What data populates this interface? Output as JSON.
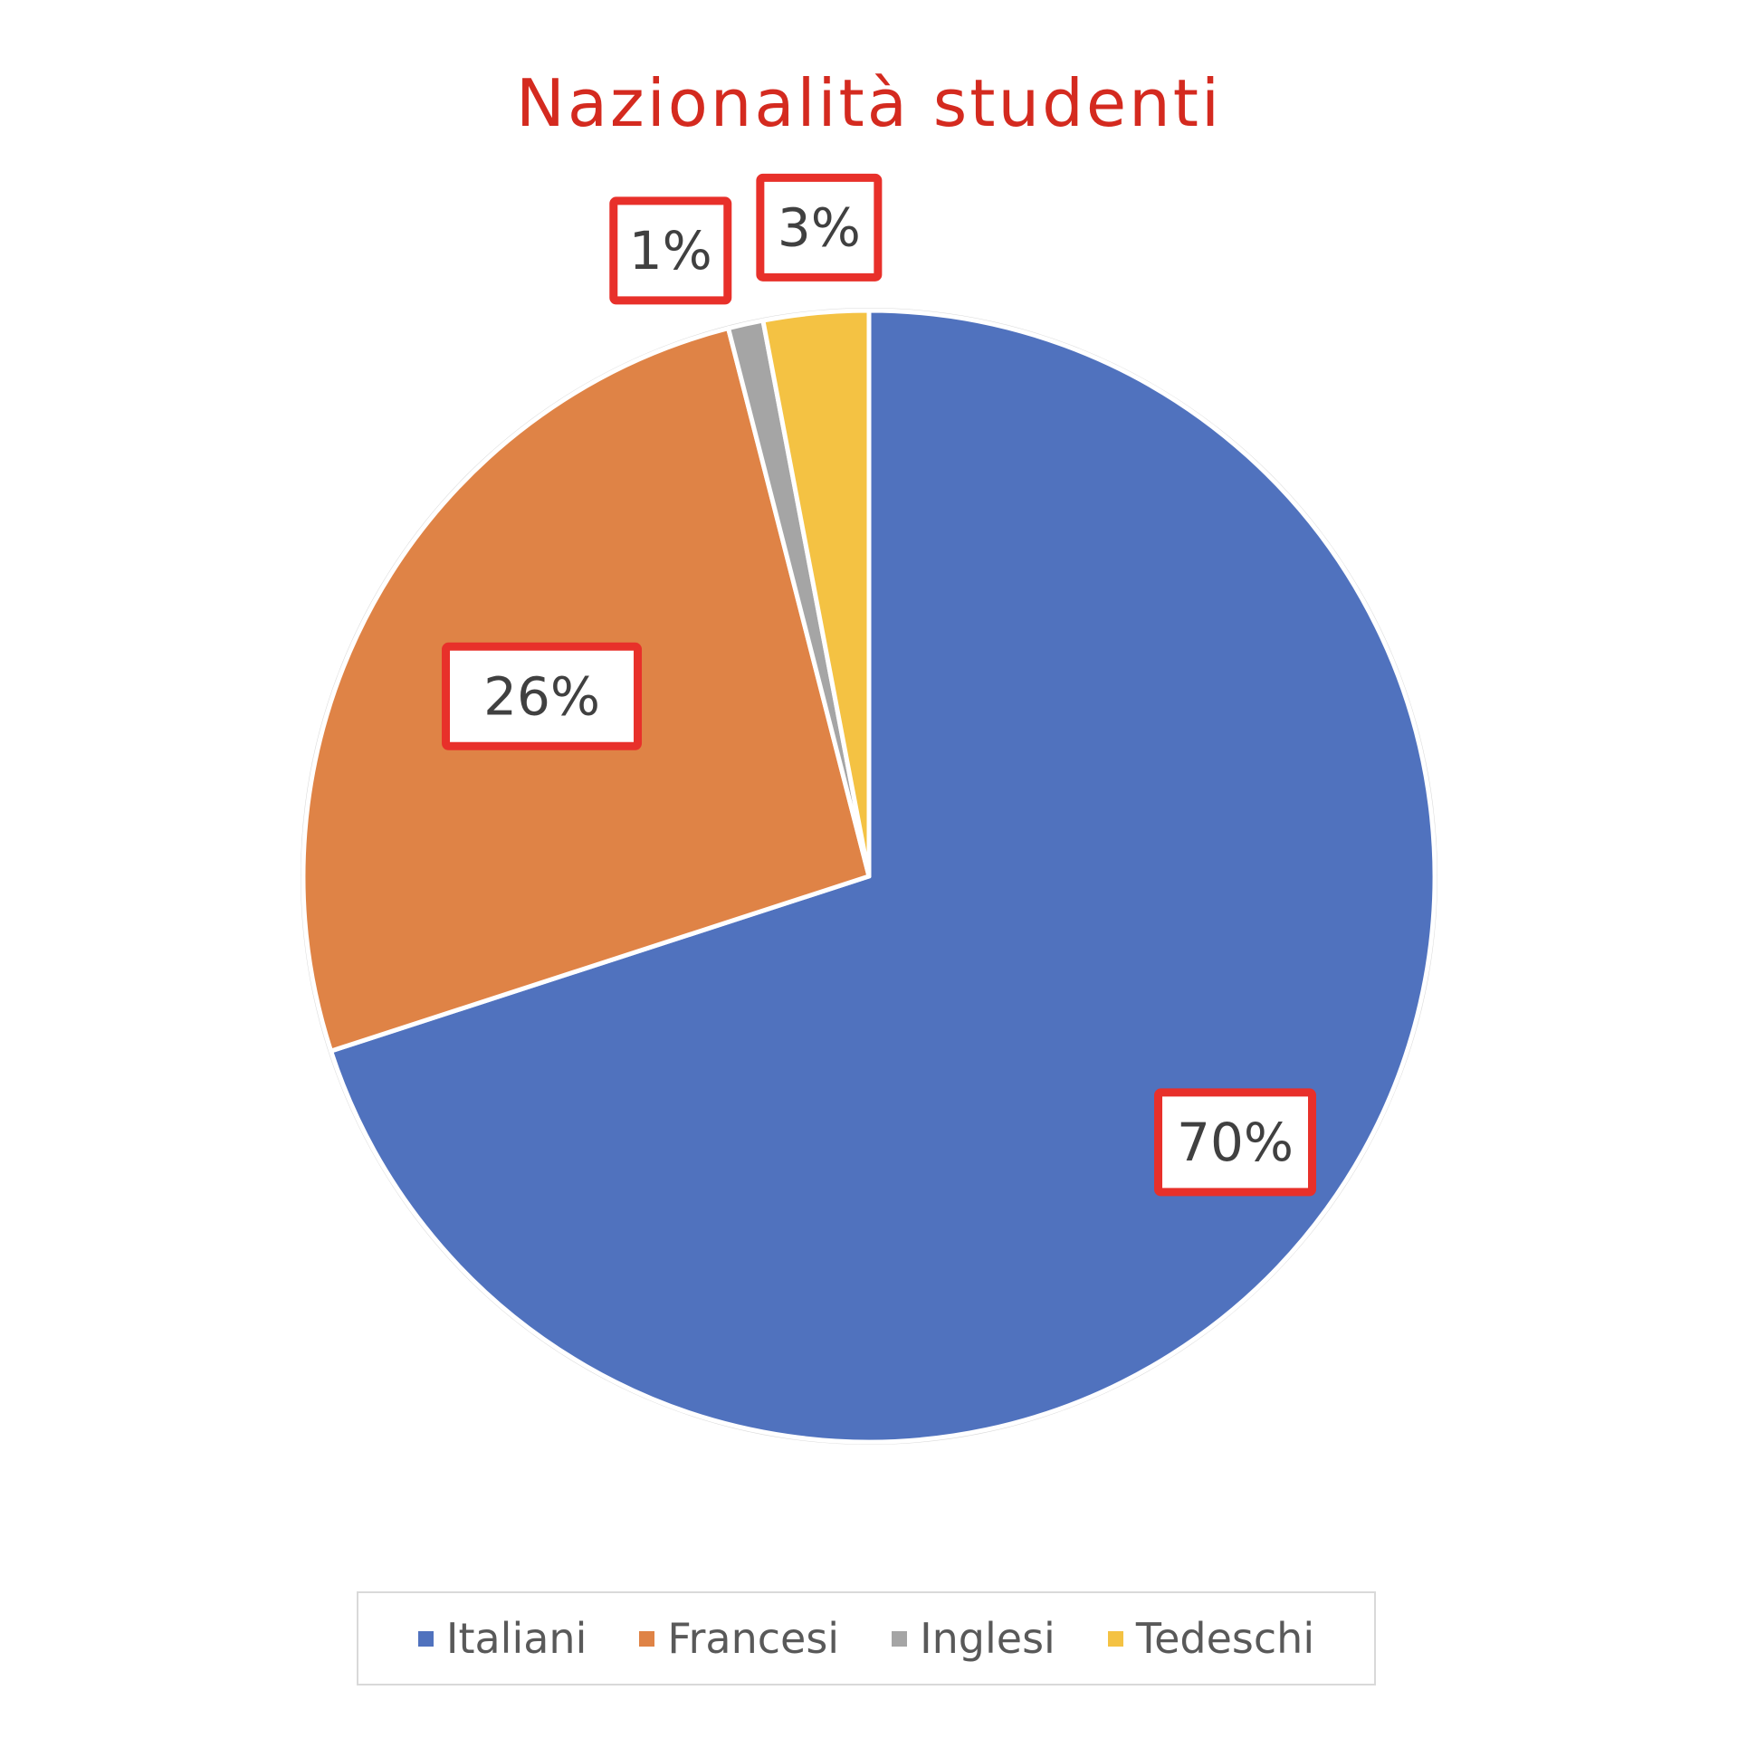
{
  "chart_data": {
    "type": "pie",
    "title": "Nazionalità studenti",
    "categories": [
      "Italiani",
      "Francesi",
      "Inglesi",
      "Tedeschi"
    ],
    "values": [
      70,
      26,
      1,
      3
    ],
    "value_unit": "%",
    "data_labels": [
      "70%",
      "26%",
      "1%",
      "3%"
    ],
    "colors": [
      "#5072be",
      "#df8346",
      "#a5a5a5",
      "#f4c243"
    ],
    "title_color": "#d42a1f",
    "label_box_color": "#e8302a",
    "legend_position": "bottom",
    "start_angle_deg": 0,
    "direction": "clockwise"
  }
}
